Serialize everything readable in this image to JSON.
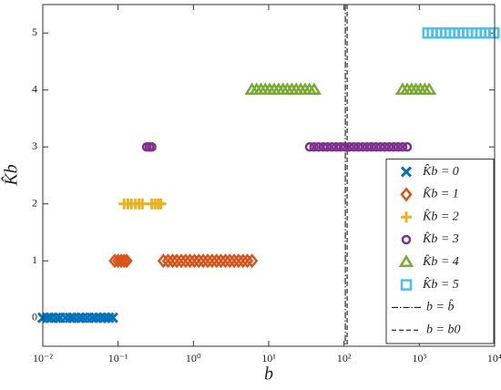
{
  "chart_data": {
    "type": "scatter",
    "xlabel": "b",
    "ylabel": "K̂b",
    "xscale": "log",
    "xlim": [
      0.01,
      10000
    ],
    "xticks": [
      {
        "value": 0.01,
        "label": "10⁻²"
      },
      {
        "value": 0.1,
        "label": "10⁻¹"
      },
      {
        "value": 1,
        "label": "10⁰"
      },
      {
        "value": 10,
        "label": "10¹"
      },
      {
        "value": 100,
        "label": "10²"
      },
      {
        "value": 1000,
        "label": "10³"
      },
      {
        "value": 10000,
        "label": "10⁴"
      }
    ],
    "ylim": [
      -0.5,
      5.5
    ],
    "yticks": [
      0,
      1,
      2,
      3,
      4,
      5
    ],
    "legend": "right",
    "series": [
      {
        "name": "K̂b = 0",
        "color": "#0072bd",
        "marker": "x",
        "x": [
          0.01,
          0.0115,
          0.013,
          0.015,
          0.017,
          0.02,
          0.023,
          0.026,
          0.03,
          0.034,
          0.039,
          0.045,
          0.051,
          0.058,
          0.066,
          0.075,
          0.085
        ],
        "values": [
          0,
          0,
          0,
          0,
          0,
          0,
          0,
          0,
          0,
          0,
          0,
          0,
          0,
          0,
          0,
          0,
          0
        ]
      },
      {
        "name": "K̂b = 1",
        "color": "#d95319",
        "marker": "diamond",
        "x": [
          0.09,
          0.1,
          0.11,
          0.12,
          0.13,
          0.4,
          0.46,
          0.53,
          0.6,
          0.69,
          0.79,
          0.9,
          1.03,
          1.18,
          1.35,
          1.55,
          1.77,
          2.03,
          2.32,
          2.66,
          3.04,
          3.48,
          3.98,
          4.56,
          5.2,
          6
        ],
        "values": [
          1,
          1,
          1,
          1,
          1,
          1,
          1,
          1,
          1,
          1,
          1,
          1,
          1,
          1,
          1,
          1,
          1,
          1,
          1,
          1,
          1,
          1,
          1,
          1,
          1,
          1
        ]
      },
      {
        "name": "K̂b = 2",
        "color": "#edb120",
        "marker": "plus",
        "x": [
          0.12,
          0.135,
          0.15,
          0.17,
          0.19,
          0.21,
          0.28,
          0.31,
          0.34,
          0.37
        ],
        "values": [
          2,
          2,
          2,
          2,
          2,
          2,
          2,
          2,
          2,
          2
        ]
      },
      {
        "name": "K̂b = 3",
        "color": "#7e2f8e",
        "marker": "circle",
        "x": [
          0.24,
          0.26,
          0.28,
          35,
          40,
          46,
          53,
          60,
          69,
          79,
          90,
          103,
          118,
          135,
          155,
          177,
          203,
          232,
          266,
          304,
          348,
          398,
          456,
          522,
          600,
          690
        ],
        "values": [
          3,
          3,
          3,
          3,
          3,
          3,
          3,
          3,
          3,
          3,
          3,
          3,
          3,
          3,
          3,
          3,
          3,
          3,
          3,
          3,
          3,
          3,
          3,
          3,
          3,
          3
        ]
      },
      {
        "name": "K̂b = 4",
        "color": "#77ac30",
        "marker": "triangle",
        "x": [
          6,
          6.9,
          7.9,
          9,
          10.3,
          11.8,
          13.5,
          15.5,
          17.7,
          20.3,
          23.2,
          26.6,
          30.4,
          34.8,
          40,
          600,
          690,
          790,
          900,
          1030,
          1180,
          1350
        ],
        "values": [
          4,
          4,
          4,
          4,
          4,
          4,
          4,
          4,
          4,
          4,
          4,
          4,
          4,
          4,
          4,
          4,
          4,
          4,
          4,
          4,
          4,
          4
        ]
      },
      {
        "name": "K̂b = 5",
        "color": "#4dbeee",
        "marker": "square",
        "x": [
          1300,
          1490,
          1700,
          1950,
          2230,
          2550,
          2920,
          3340,
          3820,
          4370,
          5000,
          5720,
          6550,
          7500,
          8580,
          9800
        ],
        "values": [
          5,
          5,
          5,
          5,
          5,
          5,
          5,
          5,
          5,
          5,
          5,
          5,
          5,
          5,
          5,
          5
        ]
      }
    ],
    "vlines": [
      {
        "x": 104,
        "name": "b = b̂",
        "style": "dashdot",
        "color": "#000000"
      },
      {
        "x": 110,
        "name": "b = b0",
        "style": "dashed",
        "color": "#000000"
      }
    ]
  }
}
